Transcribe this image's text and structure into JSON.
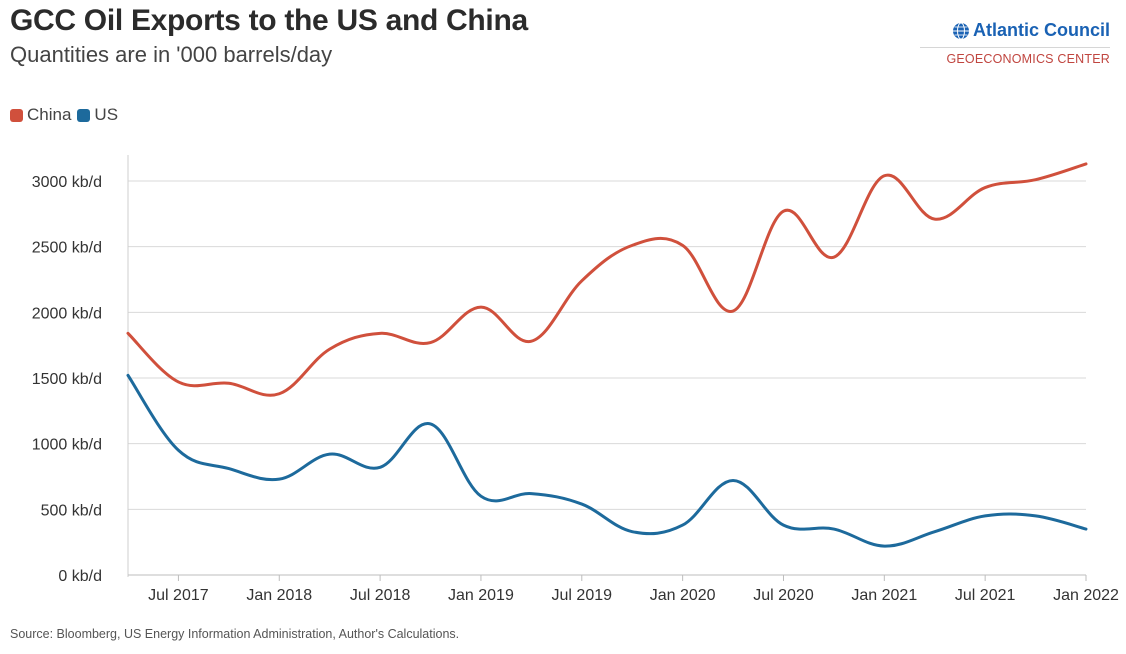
{
  "title": "GCC Oil Exports to the US and China",
  "subtitle": "Quantities are in '000 barrels/day",
  "logo": {
    "name": "Atlantic Council",
    "subname": "GEOECONOMICS CENTER",
    "icon": "globe-icon"
  },
  "legend": [
    {
      "label": "China",
      "color": "#d0503c"
    },
    {
      "label": "US",
      "color": "#1d6a9c"
    }
  ],
  "source": "Source: Bloomberg, US Energy Information Administration, Author's Calculations.",
  "chart_data": {
    "type": "line",
    "x_tick_labels": [
      "Jul 2017",
      "Jan 2018",
      "Jul 2018",
      "Jan 2019",
      "Jul 2019",
      "Jan 2020",
      "Jul 2020",
      "Jan 2021",
      "Jul 2021",
      "Jan 2022"
    ],
    "y_ticks": [
      0,
      500,
      1000,
      1500,
      2000,
      2500,
      3000
    ],
    "y_tick_labels": [
      "0 kb/d",
      "500 kb/d",
      "1000 kb/d",
      "1500 kb/d",
      "2000 kb/d",
      "2500 kb/d",
      "3000 kb/d"
    ],
    "ylim": [
      0,
      3200
    ],
    "x_range_quarters": [
      0,
      19
    ],
    "grid": true,
    "legend_position": "top-left",
    "x": [
      "Apr 2017",
      "Jul 2017",
      "Oct 2017",
      "Jan 2018",
      "Apr 2018",
      "Jul 2018",
      "Oct 2018",
      "Jan 2019",
      "Apr 2019",
      "Jul 2019",
      "Oct 2019",
      "Jan 2020",
      "Apr 2020",
      "Jul 2020",
      "Oct 2020",
      "Jan 2021",
      "Apr 2021",
      "Jul 2021",
      "Oct 2021",
      "Jan 2022"
    ],
    "series": [
      {
        "name": "China",
        "color": "#d0503c",
        "values": [
          1840,
          1470,
          1460,
          1380,
          1720,
          1840,
          1770,
          2040,
          1780,
          2240,
          2510,
          2510,
          2010,
          2770,
          2420,
          3040,
          2710,
          2950,
          3010,
          3130
        ]
      },
      {
        "name": "US",
        "color": "#1d6a9c",
        "values": [
          1520,
          950,
          810,
          730,
          920,
          820,
          1150,
          600,
          620,
          540,
          330,
          380,
          720,
          380,
          350,
          220,
          330,
          450,
          450,
          350
        ]
      }
    ]
  }
}
